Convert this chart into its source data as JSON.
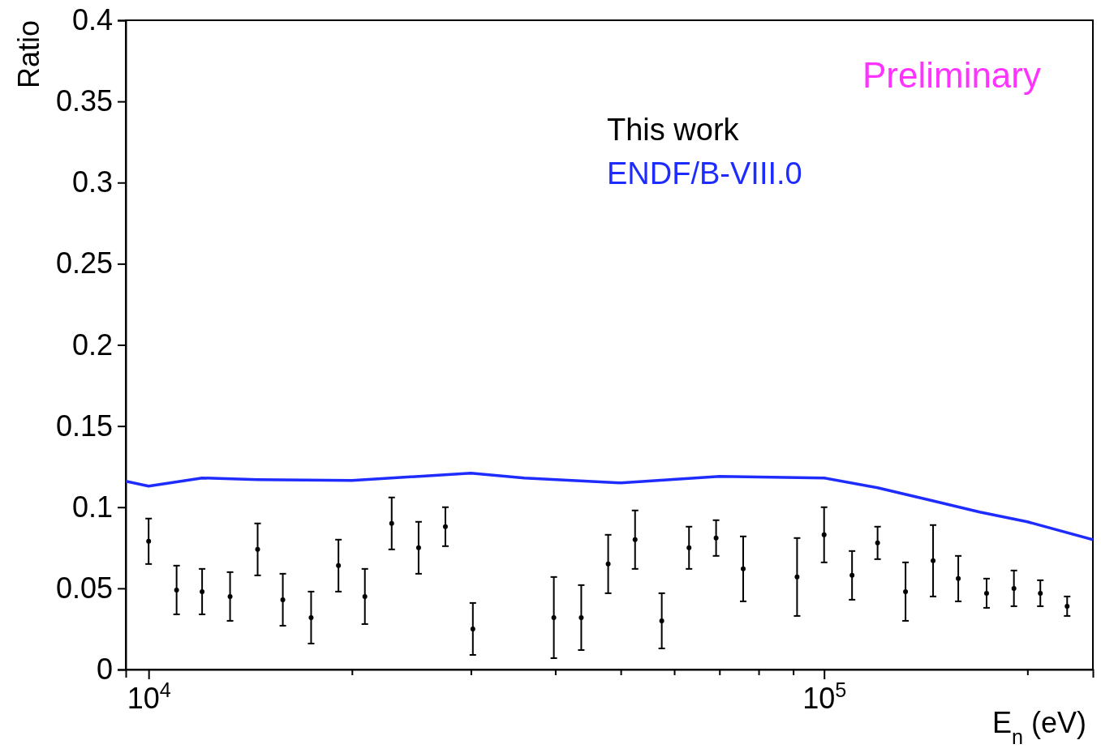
{
  "chart_data": {
    "type": "scatter",
    "xlabel": "E$_{n}$ (eV)",
    "ylabel": "Ratio",
    "log": "x",
    "legend": "top right",
    "annotations": [
      "Preliminary"
    ],
    "xlim": [
      9250,
      250000
    ],
    "xticks": [
      {
        "value": 10000,
        "label": "10$^{4}$"
      },
      {
        "value": 20000,
        "label": null
      },
      {
        "value": 30000,
        "label": null
      },
      {
        "value": 40000,
        "label": null
      },
      {
        "value": 50000,
        "label": null
      },
      {
        "value": 60000,
        "label": null
      },
      {
        "value": 70000,
        "label": null
      },
      {
        "value": 80000,
        "label": null
      },
      {
        "value": 90000,
        "label": null
      },
      {
        "value": 100000,
        "label": "10$^{5}$"
      },
      {
        "value": 200000,
        "label": null
      }
    ],
    "ylim": [
      0,
      0.4
    ],
    "yticks": [
      0,
      0.05,
      0.1,
      0.15,
      0.2,
      0.25,
      0.3,
      0.35,
      0.4
    ],
    "series": [
      {
        "name": "This work",
        "color": "#000000",
        "x": [
          10000,
          11000,
          12000,
          13200,
          14500,
          15800,
          17400,
          19100,
          20900,
          22900,
          25100,
          27500,
          30200,
          39800,
          43700,
          47900,
          52500,
          57500,
          63100,
          69200,
          75900,
          91200,
          100000,
          110000,
          120000,
          132000,
          145000,
          158000,
          174000,
          191000,
          209000,
          229000
        ],
        "values": [
          0.079,
          0.049,
          0.048,
          0.045,
          0.074,
          0.043,
          0.032,
          0.064,
          0.045,
          0.09,
          0.075,
          0.088,
          0.025,
          0.032,
          0.032,
          0.065,
          0.08,
          0.03,
          0.075,
          0.081,
          0.062,
          0.057,
          0.083,
          0.058,
          0.078,
          0.048,
          0.067,
          0.056,
          0.047,
          0.05,
          0.047,
          0.039
        ],
        "errors": [
          0.014,
          0.015,
          0.014,
          0.015,
          0.016,
          0.016,
          0.016,
          0.016,
          0.017,
          0.016,
          0.016,
          0.012,
          0.016,
          0.025,
          0.02,
          0.018,
          0.018,
          0.017,
          0.013,
          0.011,
          0.02,
          0.024,
          0.017,
          0.015,
          0.01,
          0.018,
          0.022,
          0.014,
          0.009,
          0.011,
          0.008,
          0.006
        ]
      },
      {
        "name": "ENDF/B-VIII.0",
        "type": "line",
        "color": "#1f2cff",
        "x": [
          9250,
          10000,
          12000,
          14500,
          20000,
          30000,
          36000,
          50000,
          70000,
          100000,
          120000,
          143000,
          170000,
          200000,
          250000
        ],
        "values": [
          0.116,
          0.113,
          0.118,
          0.117,
          0.1165,
          0.121,
          0.118,
          0.115,
          0.119,
          0.118,
          0.112,
          0.1045,
          0.097,
          0.091,
          0.08
        ]
      }
    ]
  }
}
